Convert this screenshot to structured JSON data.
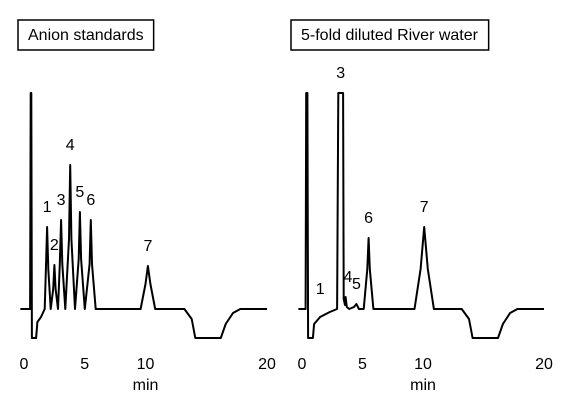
{
  "chart_data": [
    {
      "type": "line",
      "title": "Anion standards",
      "xlabel": "min",
      "color": "#000000",
      "xlim": [
        0,
        20
      ],
      "xticks": [
        0,
        5,
        10,
        20
      ],
      "ylim": [
        -40,
        220
      ],
      "x": [
        -0.3,
        0.5,
        0.55,
        0.6,
        0.65,
        0.75,
        1.0,
        1.1,
        1.4,
        1.7,
        1.8,
        1.9,
        2.0,
        2.2,
        2.4,
        2.5,
        2.6,
        2.8,
        2.95,
        3.05,
        3.15,
        3.4,
        3.7,
        3.8,
        3.9,
        4.2,
        4.5,
        4.6,
        4.7,
        5.0,
        5.4,
        5.5,
        5.6,
        5.9,
        9.6,
        10.0,
        10.2,
        10.4,
        10.8,
        13.2,
        13.8,
        14.1,
        16.2,
        16.6,
        17.2,
        17.8,
        20
      ],
      "values": [
        0,
        0,
        216,
        216,
        -29,
        -29,
        -29,
        -13,
        -8,
        0,
        40,
        82,
        40,
        0,
        20,
        44,
        20,
        0,
        45,
        89,
        45,
        0,
        70,
        144,
        70,
        0,
        50,
        97,
        50,
        0,
        45,
        89,
        45,
        0,
        0,
        25,
        43,
        25,
        0,
        0,
        -10,
        -29,
        -29,
        -15,
        -4,
        0,
        0
      ],
      "annotations": [
        {
          "text": "1",
          "x": 1.9,
          "y": 82
        },
        {
          "text": "2",
          "x": 2.5,
          "y": 44
        },
        {
          "text": "3",
          "x": 3.05,
          "y": 89
        },
        {
          "text": "4",
          "x": 3.8,
          "y": 144
        },
        {
          "text": "5",
          "x": 4.6,
          "y": 97
        },
        {
          "text": "6",
          "x": 5.5,
          "y": 89
        },
        {
          "text": "7",
          "x": 10.2,
          "y": 43
        }
      ]
    },
    {
      "type": "line",
      "title": "5-fold diluted River water",
      "xlabel": "min",
      "color": "#000000",
      "xlim": [
        0,
        20
      ],
      "xticks": [
        0,
        5,
        10,
        20
      ],
      "ylim": [
        -40,
        220
      ],
      "x": [
        -0.3,
        0.3,
        0.35,
        0.45,
        0.5,
        0.9,
        1.0,
        1.5,
        2.3,
        2.9,
        3.0,
        3.4,
        3.45,
        3.55,
        3.6,
        3.7,
        3.9,
        4.3,
        4.5,
        4.7,
        5.1,
        5.4,
        5.5,
        5.6,
        5.9,
        9.3,
        9.8,
        10.1,
        10.4,
        10.9,
        13.2,
        13.8,
        14.1,
        16.2,
        16.6,
        17.2,
        17.8,
        20
      ],
      "values": [
        0,
        0,
        216,
        216,
        -29,
        -29,
        -15,
        -8,
        -3,
        0,
        216,
        216,
        10,
        4,
        12,
        2,
        0,
        2,
        5,
        0,
        0,
        40,
        71,
        40,
        0,
        0,
        40,
        82,
        40,
        0,
        0,
        -10,
        -29,
        -29,
        -15,
        -4,
        0,
        0
      ],
      "annotations": [
        {
          "text": "1",
          "x": 1.5,
          "y": 0
        },
        {
          "text": "3",
          "x": 3.2,
          "y": 216
        },
        {
          "text": "4",
          "x": 3.8,
          "y": 12
        },
        {
          "text": "5",
          "x": 4.5,
          "y": 5
        },
        {
          "text": "6",
          "x": 5.5,
          "y": 71
        },
        {
          "text": "7",
          "x": 10.1,
          "y": 82
        }
      ]
    }
  ]
}
